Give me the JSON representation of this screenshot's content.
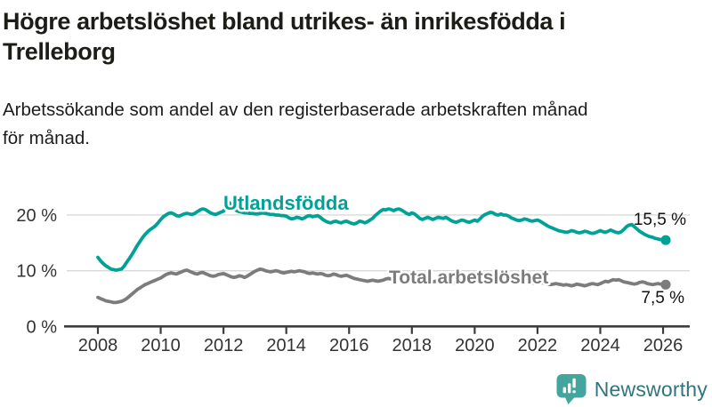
{
  "header": {
    "title": "Högre arbetslöshet bland utrikes- än inrikesfödda i Trelleborg",
    "title_lines": [
      "Högre arbetslöshet bland utrikes- än inrikesfödda i",
      "Trelleborg"
    ],
    "subtitle": "Arbetssökande som andel av den registerbaserade arbetskraften månad för månad.",
    "subtitle_lines": [
      "Arbetssökande som andel av den registerbaserade arbetskraften månad",
      "för månad."
    ]
  },
  "footer": {
    "brand": "Newsworthy",
    "brand_icon": "bar-chart-speech-bubble-icon",
    "brand_color": "#44a59f",
    "brand_text_color": "#2f7580"
  },
  "chart_data": {
    "type": "line",
    "title": "Högre arbetslöshet bland utrikes- än inrikesfödda i Trelleborg",
    "subtitle": "Arbetssökande som andel av den registerbaserade arbetskraften månad för månad.",
    "frequency": "monthly",
    "x_start": "2008-01",
    "x_end": "2026-02",
    "xlabel": "",
    "ylabel": "",
    "ylim": [
      0,
      23.5
    ],
    "grid": "horizontal",
    "legend": "inline-labels",
    "x_ticks": [
      2008,
      2010,
      2012,
      2014,
      2016,
      2018,
      2020,
      2022,
      2024,
      2026
    ],
    "y_ticks": [
      {
        "value": 0,
        "label": "0 %"
      },
      {
        "value": 10,
        "label": "10 %"
      },
      {
        "value": 20,
        "label": "20 %"
      }
    ],
    "series": [
      {
        "name": "Utlandsfödda",
        "color": "#00a296",
        "end_value": 15.5,
        "end_label": "15,5 %",
        "values": [
          12.4,
          11.8,
          11.3,
          10.9,
          10.6,
          10.3,
          10.2,
          10.1,
          10.2,
          10.3,
          10.8,
          11.5,
          12.2,
          12.9,
          13.7,
          14.5,
          15.2,
          15.9,
          16.5,
          17.0,
          17.4,
          17.7,
          18.1,
          18.6,
          19.2,
          19.7,
          20.0,
          20.3,
          20.4,
          20.2,
          19.9,
          19.8,
          20.0,
          20.2,
          20.3,
          20.2,
          20.1,
          20.3,
          20.6,
          20.9,
          21.1,
          21.0,
          20.7,
          20.4,
          20.2,
          20.1,
          20.3,
          20.5,
          20.7,
          21.4,
          22.3,
          21.8,
          21.2,
          20.8,
          20.6,
          20.5,
          20.4,
          20.4,
          20.3,
          20.3,
          20.2,
          20.2,
          20.3,
          20.4,
          20.3,
          20.2,
          20.1,
          20.1,
          20.0,
          20.0,
          19.9,
          19.9,
          19.8,
          19.5,
          19.3,
          19.4,
          19.6,
          19.5,
          19.3,
          19.5,
          19.8,
          19.9,
          19.7,
          19.8,
          19.9,
          19.6,
          19.2,
          18.9,
          18.7,
          18.6,
          18.8,
          18.9,
          18.7,
          18.6,
          18.8,
          18.9,
          18.7,
          18.5,
          18.4,
          18.6,
          18.9,
          18.8,
          18.6,
          18.8,
          19.1,
          19.4,
          19.9,
          20.3,
          20.7,
          21.0,
          20.9,
          21.1,
          21.0,
          20.8,
          21.0,
          21.1,
          20.9,
          20.6,
          20.3,
          20.1,
          20.4,
          20.2,
          19.8,
          19.4,
          19.2,
          19.4,
          19.6,
          19.4,
          19.2,
          19.4,
          19.6,
          19.5,
          19.4,
          19.6,
          19.3,
          19.0,
          18.8,
          18.7,
          18.9,
          19.1,
          19.0,
          18.8,
          18.7,
          18.9,
          19.1,
          18.9,
          19.3,
          19.8,
          20.1,
          20.3,
          20.5,
          20.4,
          20.1,
          20.0,
          20.2,
          20.0,
          20.0,
          19.8,
          19.5,
          19.3,
          19.1,
          19.0,
          19.1,
          19.3,
          19.2,
          19.0,
          18.9,
          19.0,
          19.1,
          18.9,
          18.6,
          18.3,
          18.0,
          17.8,
          17.6,
          17.4,
          17.2,
          17.1,
          17.0,
          16.9,
          17.0,
          17.2,
          17.1,
          16.9,
          16.8,
          16.9,
          17.1,
          17.0,
          16.8,
          16.7,
          16.8,
          17.0,
          17.2,
          17.0,
          16.9,
          17.1,
          17.3,
          17.1,
          16.9,
          16.8,
          17.0,
          17.4,
          17.9,
          18.2,
          18.3,
          17.9,
          17.5,
          17.1,
          16.8,
          16.5,
          16.3,
          16.1,
          16.0,
          15.8,
          15.7,
          15.6,
          15.6,
          15.5
        ]
      },
      {
        "name": "Total arbetslöshet",
        "color": "#7c7c7c",
        "end_value": 7.5,
        "end_label": "7,5 %",
        "values": [
          5.2,
          5.0,
          4.8,
          4.6,
          4.5,
          4.4,
          4.3,
          4.3,
          4.4,
          4.5,
          4.7,
          5.0,
          5.4,
          5.8,
          6.2,
          6.6,
          6.9,
          7.2,
          7.5,
          7.7,
          7.9,
          8.1,
          8.3,
          8.5,
          8.7,
          9.0,
          9.3,
          9.5,
          9.6,
          9.5,
          9.4,
          9.6,
          9.8,
          10.0,
          10.1,
          9.9,
          9.7,
          9.5,
          9.4,
          9.6,
          9.7,
          9.5,
          9.3,
          9.1,
          9.0,
          9.1,
          9.3,
          9.4,
          9.5,
          9.3,
          9.1,
          8.9,
          8.8,
          8.9,
          9.1,
          9.0,
          8.8,
          9.0,
          9.3,
          9.6,
          9.9,
          10.1,
          10.3,
          10.2,
          10.0,
          9.9,
          9.8,
          9.9,
          10.0,
          9.9,
          9.7,
          9.6,
          9.7,
          9.8,
          9.9,
          9.8,
          9.9,
          10.0,
          9.9,
          9.8,
          9.6,
          9.5,
          9.6,
          9.5,
          9.4,
          9.5,
          9.4,
          9.2,
          9.1,
          9.2,
          9.4,
          9.3,
          9.1,
          9.0,
          9.1,
          9.2,
          9.0,
          8.8,
          8.6,
          8.5,
          8.4,
          8.3,
          8.2,
          8.1,
          8.2,
          8.3,
          8.2,
          8.1,
          8.2,
          8.3,
          8.5,
          8.6,
          8.5,
          8.4,
          8.4,
          8.5,
          8.4,
          8.3,
          8.2,
          8.3,
          8.2,
          8.1,
          8.0,
          8.1,
          8.2,
          8.1,
          8.0,
          7.9,
          8.0,
          8.1,
          8.0,
          7.9,
          8.0,
          8.1,
          8.0,
          7.9,
          7.8,
          7.9,
          8.0,
          8.1,
          8.2,
          8.3,
          8.2,
          8.1,
          8.2,
          8.3,
          8.5,
          8.7,
          8.6,
          8.5,
          8.4,
          8.3,
          8.2,
          8.1,
          8.0,
          8.1,
          8.0,
          8.1,
          8.0,
          7.9,
          7.8,
          7.9,
          7.8,
          7.7,
          7.8,
          7.9,
          7.8,
          7.7,
          7.8,
          7.9,
          7.8,
          7.7,
          7.6,
          7.5,
          7.6,
          7.7,
          7.6,
          7.5,
          7.4,
          7.5,
          7.4,
          7.3,
          7.4,
          7.6,
          7.5,
          7.4,
          7.3,
          7.4,
          7.6,
          7.7,
          7.6,
          7.5,
          7.7,
          7.9,
          8.1,
          8.0,
          8.2,
          8.4,
          8.3,
          8.4,
          8.2,
          8.0,
          7.9,
          7.8,
          7.7,
          7.6,
          7.7,
          7.9,
          8.0,
          7.9,
          7.7,
          7.6,
          7.5,
          7.6,
          7.7,
          7.6,
          7.5,
          7.5
        ]
      }
    ],
    "colors": {
      "grid": "#d9d9d9",
      "axis": "#3d3d3d",
      "tick_labels": "#333333",
      "end_labels": "#111111"
    }
  }
}
